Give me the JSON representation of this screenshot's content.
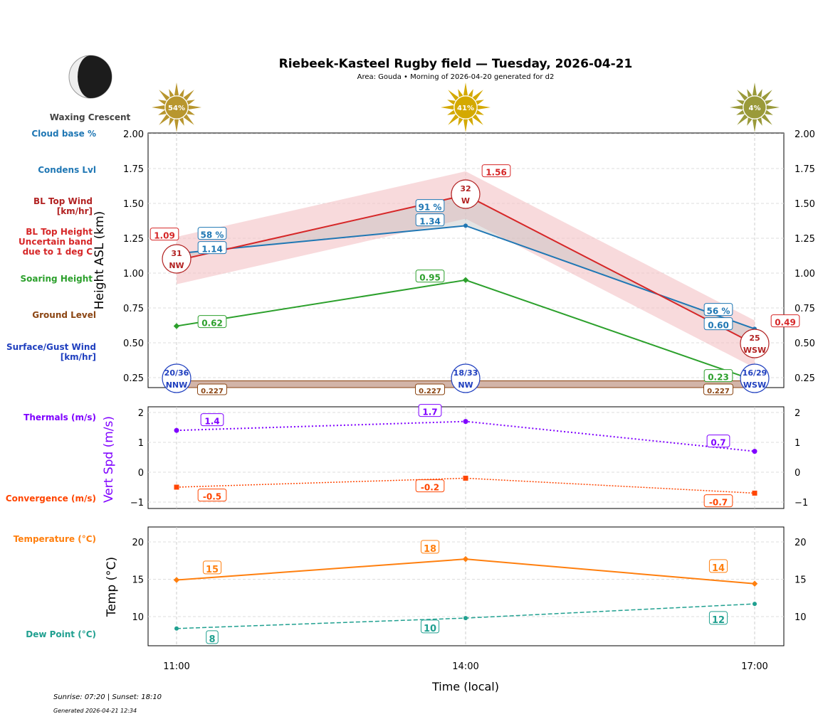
{
  "title": "Riebeek-Kasteel Rugby field — Tuesday, 2026-04-21",
  "subtitle": "Area: Gouda • Morning of 2026-04-20 generated for d2",
  "moon_phase": "Waxing Crescent",
  "footer": {
    "sun": "Sunrise: 07:20 | Sunset: 18:10",
    "generated": "Generated 2026-04-21 12:34"
  },
  "left_labels": [
    {
      "text": "Cloud base %",
      "color": "#1f77b4"
    },
    {
      "text": "Condens Lvl",
      "color": "#1f77b4"
    },
    {
      "text": "BL Top Wind\n[km/hr]",
      "color": "#b22222"
    },
    {
      "text": "BL Top Height\nUncertain band\ndue to 1 deg C",
      "color": "#d62728"
    },
    {
      "text": "Soaring Height",
      "color": "#2ca02c"
    },
    {
      "text": "Ground Level",
      "color": "#8b4513"
    },
    {
      "text": "Surface/Gust Wind\n[km/hr]",
      "color": "#1f3fbf"
    },
    {
      "text": "Thermals (m/s)",
      "color": "#7f00ff"
    },
    {
      "text": "Convergence (m/s)",
      "color": "#ff4500"
    },
    {
      "text": "Temperature (°C)",
      "color": "#ff7f0e"
    },
    {
      "text": "Dew Point (°C)",
      "color": "#20a090"
    }
  ],
  "chart_data": [
    {
      "type": "line",
      "ylabel": "Height ASL (km)",
      "ylim": [
        0.18,
        2.0
      ],
      "yticks": [
        "0.25",
        "0.50",
        "0.75",
        "1.00",
        "1.25",
        "1.50",
        "1.75",
        "2.00"
      ],
      "x": [
        "11:00",
        "14:00",
        "17:00"
      ],
      "sun_percent": [
        54,
        41,
        4
      ],
      "series": [
        {
          "key": "bl_top",
          "values": [
            1.09,
            1.56,
            0.49
          ],
          "color": "#d62728",
          "band": 0.17
        },
        {
          "key": "condens",
          "values": [
            1.14,
            1.34,
            0.6
          ],
          "cloud_pct": [
            "58 %",
            "91 %",
            "56 %"
          ],
          "color": "#1f77b4"
        },
        {
          "key": "soaring",
          "values": [
            0.62,
            0.95,
            0.23
          ],
          "color": "#2ca02c"
        },
        {
          "key": "ground",
          "values": [
            0.227,
            0.227,
            0.227
          ],
          "color": "#8b4513"
        }
      ],
      "bl_wind": [
        {
          "speed": "31",
          "dir": "NW"
        },
        {
          "speed": "32",
          "dir": "W"
        },
        {
          "speed": "25",
          "dir": "WSW"
        }
      ],
      "surface_wind": [
        {
          "speed": "20/36",
          "dir": "NNW"
        },
        {
          "speed": "18/33",
          "dir": "NW"
        },
        {
          "speed": "16/29",
          "dir": "WSW"
        }
      ]
    },
    {
      "type": "line",
      "ylabel": "Vert Spd (m/s)",
      "ylim": [
        -1.2,
        2.2
      ],
      "yticks": [
        "−1",
        "0",
        "1",
        "2"
      ],
      "series": [
        {
          "key": "thermals",
          "values": [
            1.4,
            1.7,
            0.7
          ],
          "color": "#7f00ff"
        },
        {
          "key": "convergence",
          "values": [
            -0.5,
            -0.2,
            -0.7
          ],
          "color": "#ff4500"
        }
      ]
    },
    {
      "type": "line",
      "ylabel": "Temp (°C)",
      "xlabel": "Time (local)",
      "ylim": [
        6,
        22
      ],
      "yticks": [
        "10",
        "15",
        "20"
      ],
      "xticks": [
        "11:00",
        "14:00",
        "17:00"
      ],
      "series": [
        {
          "key": "temperature",
          "values": [
            14.9,
            17.7,
            14.4
          ],
          "labels": [
            "15",
            "18",
            "14"
          ],
          "color": "#ff7f0e"
        },
        {
          "key": "dew_point",
          "values": [
            8.4,
            9.8,
            11.7
          ],
          "labels": [
            "8",
            "10",
            "12"
          ],
          "color": "#20a090"
        }
      ]
    }
  ]
}
